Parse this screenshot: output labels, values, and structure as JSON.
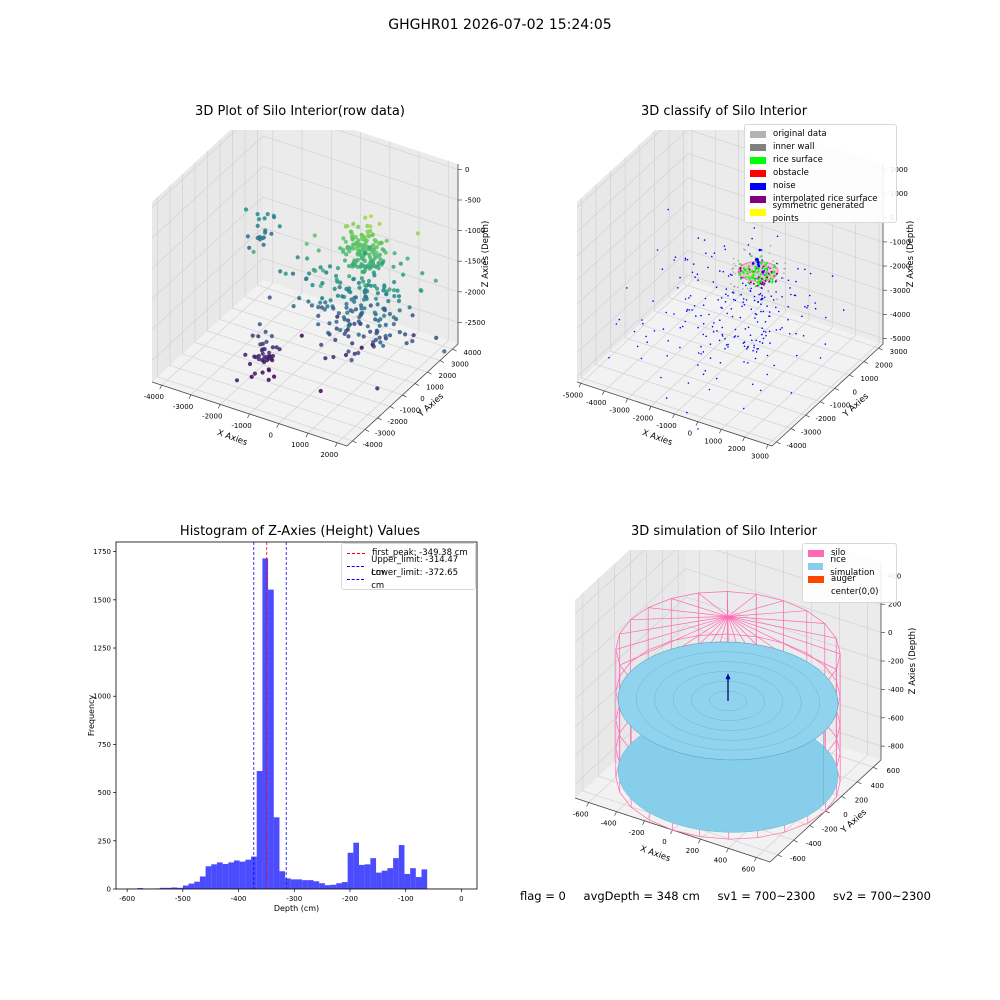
{
  "suptitle": "GHGHR01 2026-07-02 15:24:05",
  "status": {
    "flag": "flag = 0",
    "avg_depth": "avgDepth = 348 cm",
    "sv1": "sv1 = 700~2300",
    "sv2": "sv2 = 700~2300"
  },
  "chart_data": [
    {
      "type": "scatter",
      "title": "3D Plot of Silo Interior(row data)",
      "xlabel": "X Axies",
      "ylabel": "Y Axies",
      "zlabel": "Z Axies (Depth)",
      "x_ticks": [
        "-4000",
        "-3000",
        "-2000",
        "-1000",
        "0",
        "1000",
        "2000"
      ],
      "y_ticks": [
        "-4000",
        "-3000",
        "-2000",
        "-1000",
        "0",
        "1000",
        "2000",
        "3000",
        "4000"
      ],
      "z_ticks": [
        "-2500",
        "-2000",
        "-1500",
        "-1000",
        "-500",
        "0"
      ],
      "xlim": [
        -4300,
        2300
      ],
      "ylim": [
        -4300,
        4300
      ],
      "zlim": [
        -2900,
        100
      ],
      "colormap": "viridis",
      "clusters": [
        {
          "x": 700,
          "y": 700,
          "z": -900,
          "spread": [
            350,
            350,
            200
          ],
          "n": 140
        },
        {
          "x": 700,
          "y": 500,
          "z": -1750,
          "spread": [
            900,
            900,
            450
          ],
          "n": 180
        },
        {
          "x": -3800,
          "y": 3200,
          "z": -1700,
          "spread": [
            250,
            300,
            150
          ],
          "n": 20
        },
        {
          "x": -1800,
          "y": -1500,
          "z": -2600,
          "spread": [
            250,
            400,
            150
          ],
          "n": 40
        },
        {
          "x": -600,
          "y": 600,
          "z": -2200,
          "spread": [
            900,
            900,
            400
          ],
          "n": 25
        }
      ]
    },
    {
      "type": "scatter",
      "title": "3D classify of Silo Interior",
      "xlabel": "X Axies",
      "ylabel": "Y Axies",
      "zlabel": "Z Axies (Depth)",
      "x_ticks": [
        "-5000",
        "-4000",
        "-3000",
        "-2000",
        "-1000",
        "0",
        "1000",
        "2000",
        "3000"
      ],
      "y_ticks": [
        "-4000",
        "-3000",
        "-2000",
        "-1000",
        "0",
        "1000",
        "2000",
        "3000"
      ],
      "z_ticks": [
        "-5000",
        "-4000",
        "-3000",
        "-2000",
        "-1000",
        "0",
        "1000",
        "2000"
      ],
      "xlim": [
        -5200,
        3200
      ],
      "ylim": [
        -4300,
        3600
      ],
      "zlim": [
        -5200,
        2400
      ],
      "legend": [
        {
          "label": "original data",
          "color": "#b3b3b3"
        },
        {
          "label": "inner wall",
          "color": "#808080"
        },
        {
          "label": "rice surface",
          "color": "#00ff00"
        },
        {
          "label": "obstacle",
          "color": "#ff0000"
        },
        {
          "label": "noise",
          "color": "#0000ff"
        },
        {
          "label": "interpolated rice surface",
          "color": "#800080"
        },
        {
          "label": "symmetric generated points",
          "color": "#ffff00"
        }
      ]
    },
    {
      "type": "bar",
      "title": "Histogram of Z-Axies (Height) Values",
      "xlabel": "Depth (cm)",
      "ylabel": "Frequency",
      "xlim": [
        -620,
        28
      ],
      "ylim": [
        0,
        1800
      ],
      "bar_color": "#0000ff",
      "bin_width": 10.2,
      "x_ticks": [
        -600,
        -500,
        -400,
        -300,
        -200,
        -100,
        0
      ],
      "y_ticks": [
        0,
        250,
        500,
        750,
        1000,
        1250,
        1500,
        1750
      ],
      "bin_start": [
        -602,
        -591.8,
        -581.6,
        -571.4,
        -561.2,
        -551,
        -540.8,
        -530.6,
        -520.4,
        -510.2,
        -500,
        -489.8,
        -479.6,
        -469.4,
        -459.2,
        -449,
        -438.8,
        -428.6,
        -418.4,
        -408.2,
        -398,
        -387.8,
        -377.6,
        -367.4,
        -357.2,
        -347,
        -336.8,
        -326.6,
        -316.4,
        -306.2,
        -296,
        -285.8,
        -275.6,
        -265.4,
        -255.2,
        -245,
        -234.8,
        -224.6,
        -214.4,
        -204.2,
        -194,
        -183.8,
        -173.6,
        -163.4,
        -153.2,
        -143,
        -132.8,
        -122.6,
        -112.4,
        -102.2,
        -92,
        -81.8,
        -71.6,
        -61.4,
        -51.2,
        -41,
        -30.8,
        -20.6,
        -10.4
      ],
      "counts": [
        2,
        2,
        5,
        2,
        2,
        3,
        6,
        6,
        8,
        6,
        18,
        28,
        38,
        65,
        118,
        128,
        138,
        130,
        138,
        148,
        142,
        152,
        168,
        612,
        1715,
        1553,
        372,
        92,
        55,
        50,
        50,
        46,
        46,
        40,
        30,
        20,
        22,
        30,
        36,
        188,
        240,
        125,
        128,
        160,
        85,
        95,
        108,
        160,
        228,
        78,
        108,
        62,
        102,
        2,
        2,
        2,
        2,
        2,
        2
      ],
      "vlines": [
        {
          "label": "first_peak: -349.38 cm",
          "x": -349.38,
          "color": "#ff0000"
        },
        {
          "label": "Upper_limit: -314.47 cm",
          "x": -314.47,
          "color": "#0000ff"
        },
        {
          "label": "Lower_limit: -372.65 cm",
          "x": -372.65,
          "color": "#0000ff"
        }
      ]
    },
    {
      "type": "scatter",
      "title": "3D simulation of Silo Interior",
      "xlabel": "X Axies",
      "ylabel": "Y Axies",
      "zlabel": "Z Axies (Depth)",
      "x_ticks": [
        "-600",
        "-400",
        "-200",
        "0",
        "200",
        "400",
        "600"
      ],
      "y_ticks": [
        "-600",
        "-400",
        "-200",
        "0",
        "200",
        "400",
        "600"
      ],
      "z_ticks": [
        "-800",
        "-600",
        "-400",
        "-200",
        "0",
        "200",
        "400"
      ],
      "xlim": [
        -700,
        700
      ],
      "ylim": [
        -700,
        700
      ],
      "zlim": [
        -900,
        500
      ],
      "silo_radius": 700,
      "silo_zrange": [
        -900,
        0
      ],
      "rice_depth": -348,
      "legend": [
        {
          "label": "silo",
          "color": "#ff69b4"
        },
        {
          "label": "rice simulation",
          "color": "#87ceeb"
        },
        {
          "label": "auger",
          "color": "#ff4500"
        },
        {
          "label": "center(0,0)",
          "color": ""
        }
      ]
    }
  ]
}
